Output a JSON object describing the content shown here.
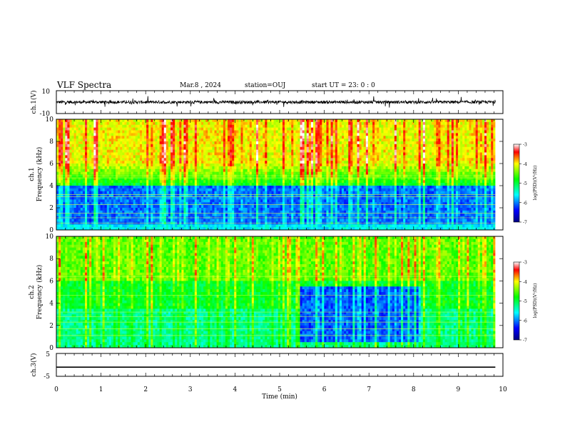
{
  "header": {
    "title": "VLF Spectra",
    "date": "Mar.8 , 2024",
    "station": "station=OUJ",
    "start": "start UT = 23: 0 : 0"
  },
  "chart_data": [
    {
      "type": "line",
      "name": "waveform-ch1",
      "ylabel": "ch.1(V)",
      "ylim": [
        -10,
        10
      ],
      "y_ticks": [
        "10",
        "-10"
      ],
      "xlim": [
        0,
        10
      ],
      "description_level": "noisy waveform centred near 0 V with spikes, ends at ~9.8 min"
    },
    {
      "type": "heatmap",
      "name": "spectrogram-ch1",
      "ylabel": "ch.1\nFrequency (kHz)",
      "ylabel_lines": [
        "ch.1",
        "Frequency (kHz)"
      ],
      "ylim": [
        0,
        10
      ],
      "y_ticks": [
        "0",
        "2",
        "4",
        "6",
        "8",
        "10"
      ],
      "xlim": [
        0,
        10
      ],
      "colorbar": {
        "label": "log(PSD)(V²/Hz)",
        "min": -7,
        "max": -3,
        "ticks": [
          "-3",
          "-4",
          "-5",
          "-6",
          "-7"
        ]
      }
    },
    {
      "type": "heatmap",
      "name": "spectrogram-ch2",
      "ylabel_lines": [
        "ch.2",
        "Frequency (kHz)"
      ],
      "ylim": [
        0,
        10
      ],
      "y_ticks": [
        "0",
        "2",
        "4",
        "6",
        "8",
        "10"
      ],
      "xlim": [
        0,
        10
      ],
      "colorbar": {
        "label": "log(PSD)(V²/Hz)",
        "min": -7,
        "max": -3,
        "ticks": [
          "-3",
          "-4",
          "-5",
          "-6",
          "-7"
        ]
      }
    },
    {
      "type": "line",
      "name": "waveform-ch3",
      "ylabel": "ch.3(V)",
      "ylim": [
        -5,
        5
      ],
      "y_ticks": [
        "5",
        "-5"
      ],
      "xlim": [
        0,
        10
      ],
      "value": -1
    }
  ],
  "x_axis": {
    "label": "Time (min)",
    "ticks": [
      "0",
      "1",
      "2",
      "3",
      "4",
      "5",
      "6",
      "7",
      "8",
      "9",
      "10"
    ]
  }
}
